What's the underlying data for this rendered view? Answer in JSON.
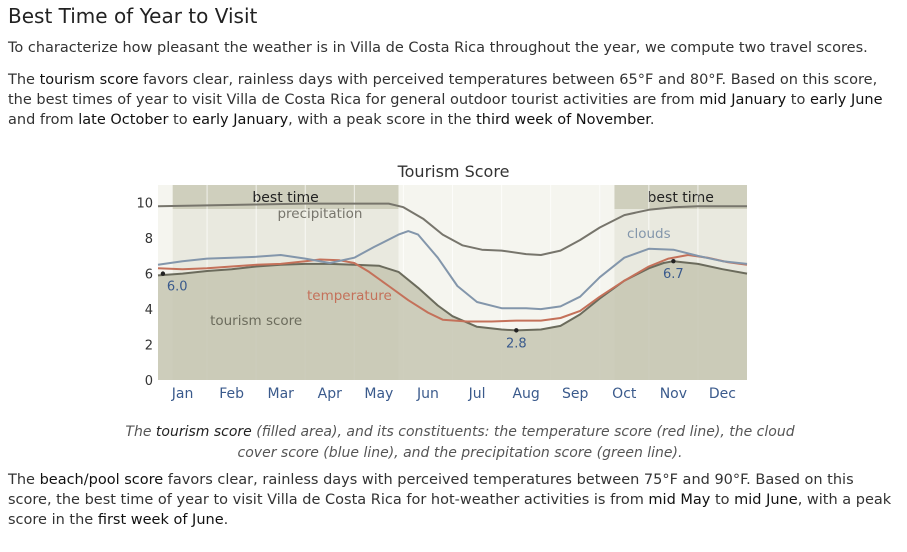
{
  "page": {
    "title": "Best Time of Year to Visit",
    "intro": "To characterize how pleasant the weather is in Villa de Costa Rica throughout the year, we compute two travel scores.",
    "tourism_paragraph": {
      "t1": "The ",
      "k1": "tourism score",
      "t2": " favors clear, rainless days with perceived temperatures between 65°F and 80°F. Based on this score, the best times of year to visit Villa de Costa Rica for general outdoor tourist activities are from ",
      "k2": "mid January",
      "t3": " to ",
      "k3": "early June",
      "t4": " and from ",
      "k4": "late October",
      "t5": " to ",
      "k5": "early January",
      "t6": ", with a peak score in the ",
      "k6": "third week of November",
      "t7": "."
    },
    "caption": {
      "t1": "The ",
      "k1": "tourism score",
      "t2": " (filled area), and its constituents: the temperature score (red line), the cloud cover score (blue line), and the precipitation score (green line)."
    },
    "beach_paragraph": {
      "t1": "The ",
      "k1": "beach/pool score",
      "t2": " favors clear, rainless days with perceived temperatures between 75°F and 90°F. Based on this score, the best time of year to visit Villa de Costa Rica for hot-weather activities is from ",
      "k2": "mid May",
      "t3": " to ",
      "k3": "mid June",
      "t4": ", with a peak score in the ",
      "k4": "first week of June",
      "t5": "."
    }
  },
  "chart_data": {
    "type": "area",
    "title": "Tourism Score",
    "ylim": [
      0,
      11
    ],
    "y_ticks": [
      0,
      2,
      4,
      6,
      8,
      10
    ],
    "xlim": [
      0,
      12
    ],
    "x_ticks": [
      {
        "label": "Jan",
        "x": 0.5
      },
      {
        "label": "Feb",
        "x": 1.5
      },
      {
        "label": "Mar",
        "x": 2.5
      },
      {
        "label": "Apr",
        "x": 3.5
      },
      {
        "label": "May",
        "x": 4.5
      },
      {
        "label": "Jun",
        "x": 5.5
      },
      {
        "label": "Jul",
        "x": 6.5
      },
      {
        "label": "Aug",
        "x": 7.5
      },
      {
        "label": "Sep",
        "x": 8.5
      },
      {
        "label": "Oct",
        "x": 9.5
      },
      {
        "label": "Nov",
        "x": 10.5
      },
      {
        "label": "Dec",
        "x": 11.5
      }
    ],
    "best_time_ranges": [
      [
        0.3,
        4.9
      ],
      [
        9.3,
        12.0
      ]
    ],
    "best_time_label": "best time",
    "series": [
      {
        "key": "tourism",
        "label": "tourism score",
        "color": "#6b6b5c",
        "points": [
          [
            0,
            5.9
          ],
          [
            0.5,
            6.0
          ],
          [
            1,
            6.15
          ],
          [
            1.5,
            6.25
          ],
          [
            2,
            6.4
          ],
          [
            2.5,
            6.5
          ],
          [
            3,
            6.55
          ],
          [
            3.5,
            6.55
          ],
          [
            4,
            6.5
          ],
          [
            4.5,
            6.45
          ],
          [
            4.9,
            6.1
          ],
          [
            5.3,
            5.2
          ],
          [
            5.7,
            4.2
          ],
          [
            6,
            3.6
          ],
          [
            6.5,
            3.0
          ],
          [
            7,
            2.85
          ],
          [
            7.3,
            2.8
          ],
          [
            7.8,
            2.85
          ],
          [
            8.2,
            3.05
          ],
          [
            8.6,
            3.7
          ],
          [
            9,
            4.6
          ],
          [
            9.5,
            5.6
          ],
          [
            10,
            6.3
          ],
          [
            10.3,
            6.6
          ],
          [
            10.5,
            6.7
          ],
          [
            11,
            6.55
          ],
          [
            11.5,
            6.25
          ],
          [
            12,
            6.0
          ]
        ]
      },
      {
        "key": "temperature",
        "label": "temperature",
        "color": "#c4715a",
        "points": [
          [
            0,
            6.3
          ],
          [
            0.5,
            6.25
          ],
          [
            1,
            6.3
          ],
          [
            1.5,
            6.4
          ],
          [
            2,
            6.5
          ],
          [
            2.5,
            6.55
          ],
          [
            3,
            6.7
          ],
          [
            3.3,
            6.8
          ],
          [
            3.7,
            6.75
          ],
          [
            4,
            6.6
          ],
          [
            4.3,
            6.1
          ],
          [
            4.7,
            5.3
          ],
          [
            5.1,
            4.5
          ],
          [
            5.5,
            3.8
          ],
          [
            5.8,
            3.4
          ],
          [
            6.3,
            3.3
          ],
          [
            6.8,
            3.3
          ],
          [
            7.3,
            3.35
          ],
          [
            7.8,
            3.35
          ],
          [
            8.2,
            3.5
          ],
          [
            8.6,
            3.9
          ],
          [
            9,
            4.7
          ],
          [
            9.5,
            5.6
          ],
          [
            10,
            6.4
          ],
          [
            10.4,
            6.85
          ],
          [
            10.8,
            7.05
          ],
          [
            11.2,
            6.9
          ],
          [
            11.6,
            6.65
          ],
          [
            12,
            6.5
          ]
        ]
      },
      {
        "key": "clouds",
        "label": "clouds",
        "color": "#8396ab",
        "points": [
          [
            0,
            6.5
          ],
          [
            0.5,
            6.7
          ],
          [
            1,
            6.85
          ],
          [
            1.5,
            6.9
          ],
          [
            2,
            6.95
          ],
          [
            2.5,
            7.05
          ],
          [
            3,
            6.85
          ],
          [
            3.5,
            6.6
          ],
          [
            4,
            6.9
          ],
          [
            4.4,
            7.5
          ],
          [
            4.9,
            8.2
          ],
          [
            5.1,
            8.4
          ],
          [
            5.3,
            8.2
          ],
          [
            5.7,
            6.9
          ],
          [
            6.1,
            5.3
          ],
          [
            6.5,
            4.4
          ],
          [
            7,
            4.05
          ],
          [
            7.5,
            4.05
          ],
          [
            7.8,
            4.0
          ],
          [
            8.2,
            4.15
          ],
          [
            8.6,
            4.7
          ],
          [
            9,
            5.8
          ],
          [
            9.5,
            6.9
          ],
          [
            10,
            7.4
          ],
          [
            10.5,
            7.35
          ],
          [
            11,
            7.0
          ],
          [
            11.5,
            6.7
          ],
          [
            12,
            6.55
          ]
        ]
      },
      {
        "key": "precipitation",
        "label": "precipitation",
        "color": "#77756c",
        "points": [
          [
            0,
            9.8
          ],
          [
            1,
            9.85
          ],
          [
            2,
            9.9
          ],
          [
            3,
            9.95
          ],
          [
            4,
            9.95
          ],
          [
            4.7,
            9.95
          ],
          [
            5.0,
            9.75
          ],
          [
            5.4,
            9.1
          ],
          [
            5.8,
            8.2
          ],
          [
            6.2,
            7.6
          ],
          [
            6.6,
            7.35
          ],
          [
            7,
            7.3
          ],
          [
            7.5,
            7.1
          ],
          [
            7.8,
            7.05
          ],
          [
            8.2,
            7.3
          ],
          [
            8.6,
            7.9
          ],
          [
            9,
            8.6
          ],
          [
            9.5,
            9.3
          ],
          [
            10,
            9.6
          ],
          [
            10.5,
            9.75
          ],
          [
            11,
            9.8
          ],
          [
            12,
            9.8
          ]
        ]
      }
    ],
    "annotations": [
      {
        "label": "6.0",
        "x": 0.1,
        "y": 6.0
      },
      {
        "label": "2.8",
        "x": 7.3,
        "y": 2.8
      },
      {
        "label": "6.7",
        "x": 10.5,
        "y": 6.7
      }
    ],
    "series_labels": [
      {
        "text": "precipitation",
        "x": 3.3,
        "y": 9.15,
        "color": "#77756c"
      },
      {
        "text": "clouds",
        "x": 10.0,
        "y": 8.0,
        "color": "#8396ab"
      },
      {
        "text": "temperature",
        "x": 3.9,
        "y": 4.5,
        "color": "#c4715a"
      },
      {
        "text": "tourism score",
        "x": 2.0,
        "y": 3.1,
        "color": "#6b6b5c"
      }
    ],
    "colors": {
      "best_band": "#e9e9df",
      "best_band_head": "#cfcfbd",
      "area_fill": "#c6c6b1",
      "background": "#f5f5ef"
    }
  }
}
